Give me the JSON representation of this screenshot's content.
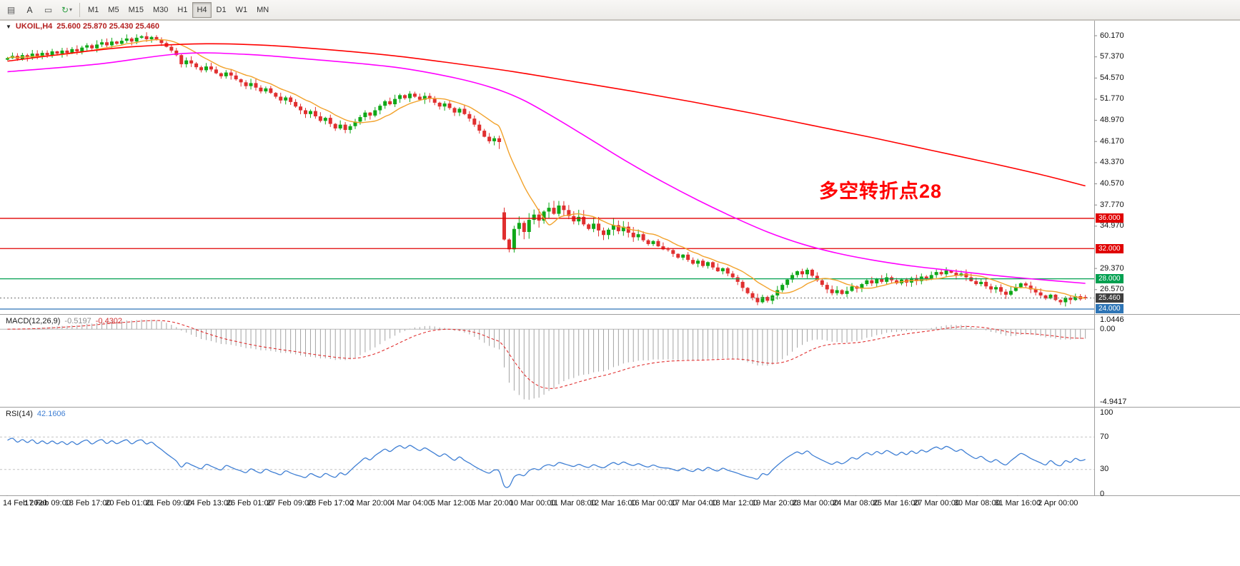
{
  "toolbar": {
    "tools": [
      {
        "name": "charts-grid",
        "glyph": "▤",
        "tint": "#555555"
      },
      {
        "name": "text-tool",
        "glyph": "A",
        "tint": "#333333"
      },
      {
        "name": "objects-tool",
        "glyph": "▭",
        "tint": "#555555"
      },
      {
        "name": "indicators-tool",
        "glyph": "↻",
        "tint": "#2f9e44",
        "dropdown": true
      }
    ],
    "dropdown_glyph": "▾",
    "timeframes": [
      "M1",
      "M5",
      "M15",
      "M30",
      "H1",
      "H4",
      "D1",
      "W1",
      "MN"
    ],
    "selected_timeframe": "H4"
  },
  "chart_header": {
    "marker_glyph": "▼",
    "symbol_period": "UKOIL,H4",
    "ohlc": "25.600 25.870 25.430 25.460"
  },
  "annotation": {
    "text": "多空转折点28",
    "color": "#ff0000"
  },
  "price_axis": {
    "labels": [
      {
        "text": "60.170",
        "price": 60.17
      },
      {
        "text": "57.370",
        "price": 57.37
      },
      {
        "text": "54.570",
        "price": 54.57
      },
      {
        "text": "51.770",
        "price": 51.77
      },
      {
        "text": "48.970",
        "price": 48.97
      },
      {
        "text": "46.170",
        "price": 46.17
      },
      {
        "text": "43.370",
        "price": 43.37
      },
      {
        "text": "40.570",
        "price": 40.57
      },
      {
        "text": "37.770",
        "price": 37.77
      },
      {
        "text": "34.970",
        "price": 34.97
      },
      {
        "text": "29.370",
        "price": 29.37
      },
      {
        "text": "26.570",
        "price": 26.57
      }
    ],
    "tags": [
      {
        "text": "36.000",
        "price": 36.0,
        "bg": "#e00000"
      },
      {
        "text": "32.000",
        "price": 32.0,
        "bg": "#e00000"
      },
      {
        "text": "28.000",
        "price": 28.0,
        "bg": "#00a050"
      },
      {
        "text": "25.460",
        "price": 25.46,
        "bg": "#3f3f3f"
      },
      {
        "text": "24.000",
        "price": 24.0,
        "bg": "#2e75b6"
      }
    ]
  },
  "time_axis": {
    "labels": [
      "14 Feb 2020",
      "17 Feb 09:00",
      "18 Feb 17:00",
      "20 Feb 01:00",
      "21 Feb 09:00",
      "24 Feb 13:00",
      "26 Feb 01:00",
      "27 Feb 09:00",
      "28 Feb 17:00",
      "2 Mar 20:00",
      "4 Mar 04:00",
      "5 Mar 12:00",
      "6 Mar 20:00",
      "10 Mar 00:00",
      "11 Mar 08:00",
      "12 Mar 16:00",
      "16 Mar 00:00",
      "17 Mar 04:00",
      "18 Mar 12:00",
      "19 Mar 20:00",
      "23 Mar 00:00",
      "24 Mar 08:00",
      "25 Mar 16:00",
      "27 Mar 00:00",
      "30 Mar 08:00",
      "31 Mar 16:00",
      "2 Apr 00:00"
    ]
  },
  "macd_panel": {
    "label": "MACD(12,26,9)",
    "value_main": "-0.5197",
    "value_signal": "-0.4302",
    "axis": [
      {
        "text": "1.0446",
        "pos": "top"
      },
      {
        "text": "0.00",
        "pos": "zero"
      },
      {
        "text": "-4.9417",
        "pos": "bottom"
      }
    ]
  },
  "rsi_panel": {
    "label": "RSI(14)",
    "value": "42.1606",
    "axis": [
      {
        "text": "100",
        "value": 100
      },
      {
        "text": "70",
        "value": 70
      },
      {
        "text": "30",
        "value": 30
      },
      {
        "text": "0",
        "value": 0
      }
    ],
    "levels": [
      70,
      30
    ]
  },
  "chart_data": {
    "type": "candlestick",
    "symbol": "UKOIL",
    "period": "H4",
    "current_bar": {
      "open": "25.600",
      "high": "25.870",
      "low": "25.430",
      "close": "25.460"
    },
    "close": [
      57.2,
      57.5,
      57.1,
      57.6,
      57.3,
      57.8,
      57.4,
      57.9,
      57.6,
      58.1,
      57.8,
      58.2,
      57.9,
      58.4,
      58.1,
      58.6,
      58.9,
      58.5,
      59.0,
      59.3,
      58.9,
      59.4,
      59.1,
      59.5,
      59.8,
      59.4,
      59.9,
      60.1,
      59.7,
      60.0,
      59.6,
      59.2,
      58.7,
      58.2,
      57.6,
      56.4,
      56.9,
      56.5,
      56.0,
      55.6,
      56.1,
      55.7,
      55.2,
      54.8,
      55.3,
      54.9,
      54.4,
      54.0,
      53.5,
      53.9,
      53.3,
      52.8,
      53.2,
      52.6,
      52.1,
      51.6,
      52.0,
      51.4,
      50.8,
      50.3,
      49.8,
      50.2,
      49.5,
      48.9,
      49.3,
      48.5,
      47.9,
      48.4,
      47.7,
      48.2,
      48.8,
      49.4,
      50.0,
      49.6,
      50.3,
      50.9,
      51.5,
      51.1,
      51.8,
      52.3,
      51.9,
      52.5,
      52.1,
      51.7,
      52.2,
      51.8,
      51.3,
      50.8,
      51.2,
      50.6,
      50.0,
      50.5,
      49.8,
      49.2,
      48.4,
      47.6,
      46.8,
      46.2,
      46.6,
      46.1,
      33.2,
      31.9,
      34.6,
      35.4,
      34.2,
      35.8,
      36.5,
      35.7,
      36.9,
      37.4,
      36.6,
      37.7,
      37.1,
      36.3,
      35.6,
      36.2,
      35.2,
      34.6,
      35.3,
      34.4,
      33.8,
      34.5,
      35.1,
      34.3,
      34.9,
      34.1,
      33.5,
      33.9,
      33.1,
      32.6,
      33.0,
      32.3,
      31.9,
      31.8,
      31.3,
      30.8,
      31.2,
      30.5,
      30.0,
      30.4,
      29.7,
      30.2,
      29.5,
      29.0,
      29.4,
      28.7,
      28.2,
      27.6,
      26.8,
      26.1,
      25.5,
      24.9,
      25.6,
      25.1,
      25.8,
      26.5,
      27.2,
      27.9,
      28.5,
      29.0,
      28.6,
      29.2,
      28.4,
      27.8,
      27.2,
      26.6,
      26.1,
      26.5,
      26.0,
      26.4,
      27.0,
      26.7,
      27.3,
      27.8,
      27.4,
      28.0,
      27.6,
      28.2,
      27.8,
      27.4,
      27.9,
      27.5,
      28.1,
      27.7,
      28.3,
      28.0,
      28.5,
      28.9,
      28.6,
      29.1,
      28.8,
      28.4,
      28.7,
      28.2,
      27.7,
      27.3,
      27.6,
      27.0,
      26.6,
      26.9,
      26.3,
      25.9,
      26.4,
      26.9,
      27.4,
      27.1,
      26.6,
      26.2,
      25.8,
      25.4,
      25.9,
      25.2,
      24.9,
      25.5,
      25.2,
      25.7,
      25.3,
      25.46
    ],
    "open_overrides": {
      "0": 57.0,
      "100": 36.8,
      "217": 25.6
    },
    "candle_colors": {
      "up": "#0fa818",
      "down": "#e02f2f"
    },
    "h_lines": [
      {
        "price": 36.0,
        "color": "#e00000"
      },
      {
        "price": 32.0,
        "color": "#e00000"
      },
      {
        "price": 28.0,
        "color": "#00a050"
      },
      {
        "price": 24.0,
        "color": "#2e75b6"
      },
      {
        "price": 25.46,
        "color": "#888888",
        "style": "dotted"
      }
    ],
    "ma_fast": {
      "period": 10,
      "color": "#f2a22b"
    },
    "ma_mid": {
      "color": "#ff00ff",
      "anchors": [
        [
          0,
          55.4
        ],
        [
          18,
          56.4
        ],
        [
          35,
          57.8
        ],
        [
          48,
          57.7
        ],
        [
          62,
          57.0
        ],
        [
          78,
          56.0
        ],
        [
          90,
          54.6
        ],
        [
          98,
          53.2
        ],
        [
          104,
          51.6
        ],
        [
          111,
          49.0
        ],
        [
          118,
          46.2
        ],
        [
          125,
          43.4
        ],
        [
          132,
          40.8
        ],
        [
          139,
          38.4
        ],
        [
          146,
          36.2
        ],
        [
          153,
          34.2
        ],
        [
          160,
          32.6
        ],
        [
          167,
          31.4
        ],
        [
          174,
          30.5
        ],
        [
          182,
          29.7
        ],
        [
          190,
          29.1
        ],
        [
          198,
          28.5
        ],
        [
          206,
          28.0
        ],
        [
          217,
          27.4
        ]
      ]
    },
    "ma_slow": {
      "color": "#ff0000",
      "anchors": [
        [
          0,
          56.8
        ],
        [
          12,
          57.8
        ],
        [
          25,
          58.7
        ],
        [
          40,
          59.1
        ],
        [
          52,
          58.9
        ],
        [
          65,
          58.3
        ],
        [
          78,
          57.5
        ],
        [
          90,
          56.5
        ],
        [
          102,
          55.4
        ],
        [
          114,
          54.1
        ],
        [
          126,
          52.8
        ],
        [
          138,
          51.4
        ],
        [
          150,
          49.9
        ],
        [
          162,
          48.3
        ],
        [
          174,
          46.7
        ],
        [
          186,
          45.0
        ],
        [
          198,
          43.3
        ],
        [
          208,
          41.8
        ],
        [
          217,
          40.3
        ]
      ]
    },
    "macd": {
      "fast": 12,
      "slow": 26,
      "signal": 9,
      "hist_color": "#a3a3a3",
      "signal_color": "#e03030"
    },
    "rsi": {
      "period": 14,
      "color": "#3f7fd4"
    }
  }
}
